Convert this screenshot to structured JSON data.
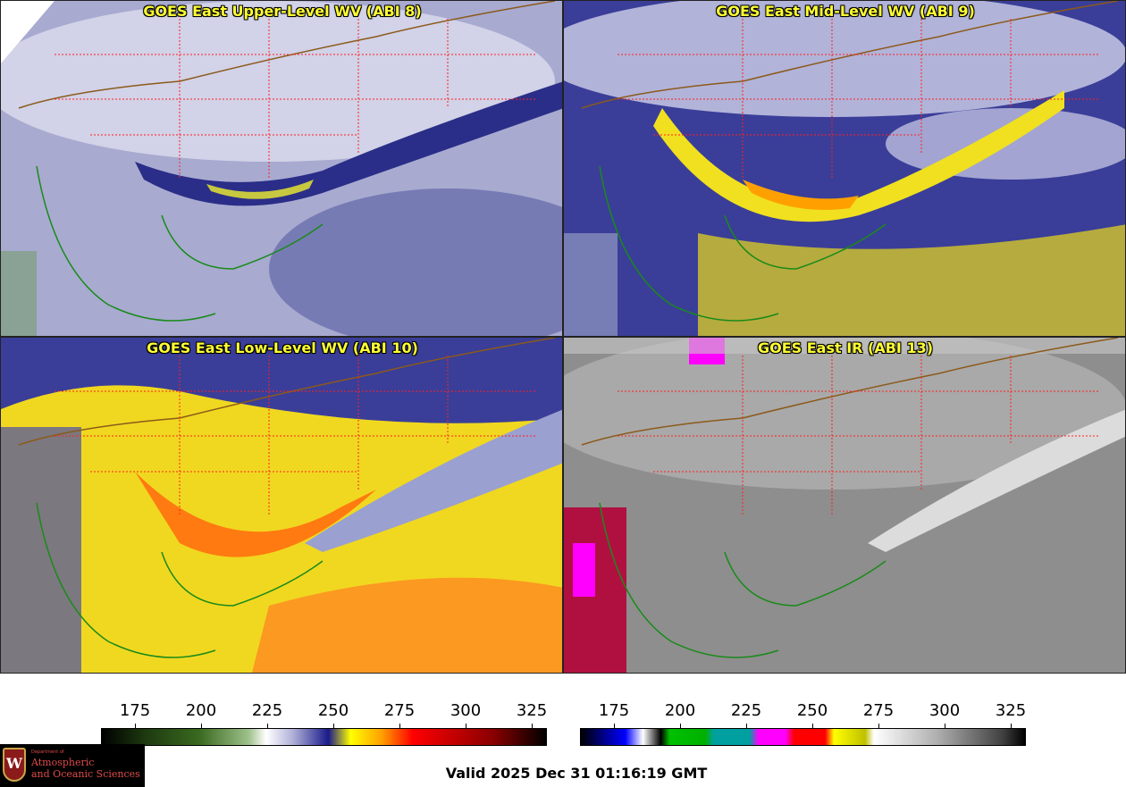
{
  "panels": [
    {
      "title": "GOES East Upper-Level WV (ABI 8)",
      "fill": "#9ea0c8"
    },
    {
      "title": "GOES East Mid-Level WV (ABI 9)",
      "fill": "#6f74b4"
    },
    {
      "title": "GOES East Low-Level WV (ABI 10)",
      "fill": "#f0e020"
    },
    {
      "title": "GOES East IR (ABI 13)",
      "fill": "#9a9a9a"
    }
  ],
  "colorbar_wv": {
    "ticks": [
      "175",
      "200",
      "225",
      "250",
      "275",
      "300",
      "325"
    ],
    "gradient": "linear-gradient(90deg,#000000 0%,#1e3a10 10%,#3a6a20 22%,#9ec08a 33%,#ffffff 37%,#b0b0d8 43%,#1a1a8a 51%,#ffff00 56%,#ffa000 63%,#ff0000 70%,#8a0000 88%,#000000 100%)"
  },
  "colorbar_ir": {
    "ticks": [
      "175",
      "200",
      "225",
      "250",
      "275",
      "300",
      "325"
    ],
    "gradient": "linear-gradient(90deg,#000000 0%,#0000a0 6%,#0000ff 10%,#ffffff 14%,#000000 18%,#00c000 20%,#00b000 28%,#00a0a0 30%,#00a0a0 38%,#ff00ff 40%,#ff00ff 46%,#ff0000 48%,#ff0000 55%,#ffff00 57%,#c0c000 64%,#ffffff 66%,#b0b0b0 80%,#404040 95%,#000000 100%)"
  },
  "logo": {
    "crest": "W",
    "department": "Department of",
    "line1": "Atmospheric",
    "line2": "and Oceanic Sciences"
  },
  "valid_time": "Valid 2025 Dec 31 01:16:19 GMT",
  "colors": {
    "border": "#1a8a1a",
    "state_lines": "#ff2020",
    "title_text": "#ffff33"
  }
}
